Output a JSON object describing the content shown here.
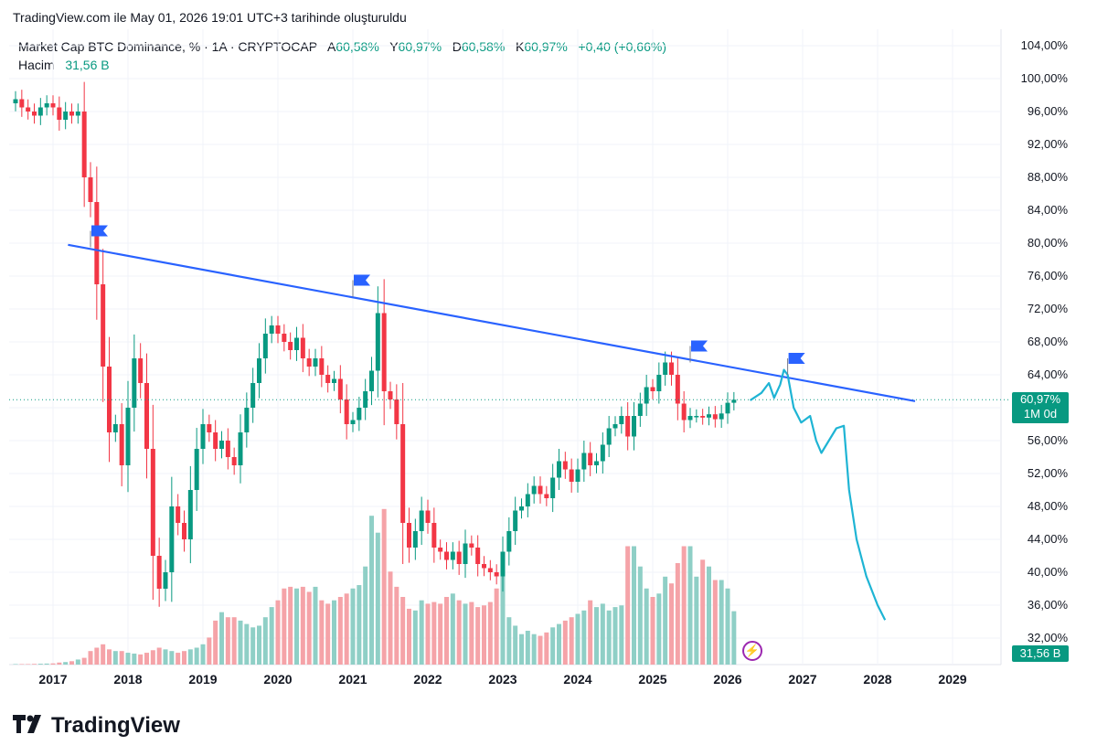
{
  "caption": "TradingView.com ile May 01, 2026 19:01 UTC+3 tarihinde oluşturuldu",
  "legend": {
    "symbol": "Market Cap BTC Dominance, % · 1A · CRYPTOCAP",
    "open_label": "A",
    "open_value": "60,58%",
    "high_label": "Y",
    "high_value": "60,97%",
    "low_label": "D",
    "low_value": "60,58%",
    "close_label": "K",
    "close_value": "60,97%",
    "change": "+0,40 (+0,66%)"
  },
  "volume_legend": {
    "label": "Hacim",
    "value": "31,56 B"
  },
  "price_badge": {
    "value": "60,97%",
    "countdown": "1M 0d"
  },
  "volume_badge": {
    "value": "31,56 B"
  },
  "brand": "TradingView",
  "colors": {
    "up": "#089981",
    "down": "#f23645",
    "vol_up": "#8fcfc6",
    "vol_down": "#f5a3a8",
    "trendline": "#2962ff",
    "projection": "#1eb4d4",
    "flag": "#2962ff"
  },
  "chart_data": {
    "type": "candlestick",
    "interval": "monthly",
    "y_unit": "%",
    "ylim": [
      30,
      106
    ],
    "xlim": [
      2016.5,
      2029.7
    ],
    "y_ticks": [
      "104,00%",
      "100,00%",
      "96,00%",
      "92,00%",
      "88,00%",
      "84,00%",
      "80,00%",
      "76,00%",
      "72,00%",
      "68,00%",
      "64,00%",
      "60,00%",
      "56,00%",
      "52,00%",
      "48,00%",
      "44,00%",
      "40,00%",
      "36,00%",
      "32,00%"
    ],
    "x_ticks": [
      "2017",
      "2018",
      "2019",
      "2020",
      "2021",
      "2022",
      "2023",
      "2024",
      "2025",
      "2026",
      "2027",
      "2028",
      "2029"
    ],
    "last_close": 60.97,
    "candles_close": [
      97.5,
      96.5,
      96.0,
      95.5,
      96.5,
      97.0,
      96.5,
      95.0,
      96.0,
      95.5,
      96.0,
      88.0,
      85.0,
      75.0,
      65.0,
      57.0,
      58.0,
      53.0,
      60.0,
      66.0,
      63.0,
      55.0,
      42.0,
      38.0,
      40.0,
      48.0,
      46.0,
      44.0,
      50.0,
      55.0,
      58.0,
      57.0,
      55.0,
      56.0,
      54.0,
      53.0,
      57.0,
      60.0,
      63.0,
      66.0,
      69.0,
      70.0,
      69.0,
      68.0,
      67.0,
      68.5,
      66.0,
      65.0,
      66.0,
      64.0,
      63.0,
      63.5,
      61.0,
      58.0,
      58.5,
      60.0,
      62.0,
      64.5,
      71.5,
      62.0,
      61.0,
      58.0,
      46.0,
      43.0,
      45.0,
      47.5,
      46.0,
      43.0,
      42.5,
      41.5,
      42.5,
      41.0,
      43.5,
      43.0,
      41.0,
      40.5,
      40.0,
      39.5,
      42.5,
      45.0,
      47.5,
      48.0,
      49.5,
      50.5,
      49.5,
      49.0,
      51.5,
      53.5,
      52.5,
      51.0,
      52.5,
      54.5,
      53.0,
      53.5,
      55.5,
      57.5,
      58.0,
      59.0,
      56.5,
      59.0,
      60.5,
      62.5,
      62.0,
      64.0,
      65.5,
      64.0,
      60.5,
      58.5,
      59.0,
      59.0,
      58.8,
      59.2,
      58.6,
      59.3,
      60.6,
      60.97
    ],
    "volume_billion": [
      0.3,
      0.3,
      0.3,
      0.4,
      0.5,
      0.6,
      0.7,
      1.2,
      1.5,
      2.0,
      3.0,
      4.0,
      8.0,
      10.0,
      12.0,
      9.0,
      8.0,
      8.0,
      7.0,
      6.5,
      6.0,
      7.0,
      8.5,
      10.0,
      9.0,
      8.0,
      7.0,
      8.0,
      9.0,
      10.0,
      12.0,
      16.0,
      26.0,
      31.0,
      28.0,
      28.0,
      26.0,
      24.0,
      22.0,
      23.0,
      28.0,
      34.0,
      38.0,
      45.0,
      46.0,
      45.0,
      46.0,
      43.0,
      46.0,
      38.0,
      36.0,
      38.0,
      40.0,
      42.0,
      45.0,
      47.0,
      58.0,
      88.0,
      78.0,
      92.0,
      55.0,
      46.0,
      40.0,
      33.0,
      32.0,
      38.0,
      36.0,
      37.0,
      36.0,
      40.0,
      42.0,
      38.0,
      36.0,
      37.0,
      34.0,
      35.0,
      37.0,
      45.0,
      53.0,
      28.0,
      23.0,
      18.0,
      20.0,
      18.0,
      17.0,
      19.0,
      22.0,
      24.0,
      26.0,
      28.0,
      30.0,
      32.0,
      38.0,
      34.0,
      36.0,
      32.0,
      34.0,
      35.0,
      70.0,
      70.0,
      58.0,
      45.0,
      40.0,
      42.0,
      52.0,
      48.0,
      60.0,
      70.0,
      70.0,
      52.0,
      62.0,
      58.0,
      50.0,
      50.0,
      45.0,
      31.56
    ],
    "trendline": {
      "from": [
        2017.2,
        79.8
      ],
      "to": [
        2028.5,
        60.8
      ]
    },
    "projection": [
      [
        2026.3,
        60.9
      ],
      [
        2026.45,
        61.8
      ],
      [
        2026.55,
        63.0
      ],
      [
        2026.62,
        61.2
      ],
      [
        2026.7,
        62.8
      ],
      [
        2026.75,
        64.6
      ],
      [
        2026.8,
        64.0
      ],
      [
        2026.88,
        60.0
      ],
      [
        2026.98,
        58.2
      ],
      [
        2027.1,
        59.0
      ],
      [
        2027.18,
        56.0
      ],
      [
        2027.25,
        54.5
      ],
      [
        2027.35,
        56.0
      ],
      [
        2027.45,
        57.5
      ],
      [
        2027.55,
        57.8
      ],
      [
        2027.62,
        50.0
      ],
      [
        2027.72,
        44.0
      ],
      [
        2027.85,
        39.5
      ],
      [
        2028.0,
        36.0
      ],
      [
        2028.1,
        34.2
      ]
    ],
    "flags": [
      [
        2017.5,
        81.5
      ],
      [
        2021.0,
        75.5
      ],
      [
        2025.5,
        67.5
      ],
      [
        2026.8,
        66.0
      ]
    ]
  }
}
